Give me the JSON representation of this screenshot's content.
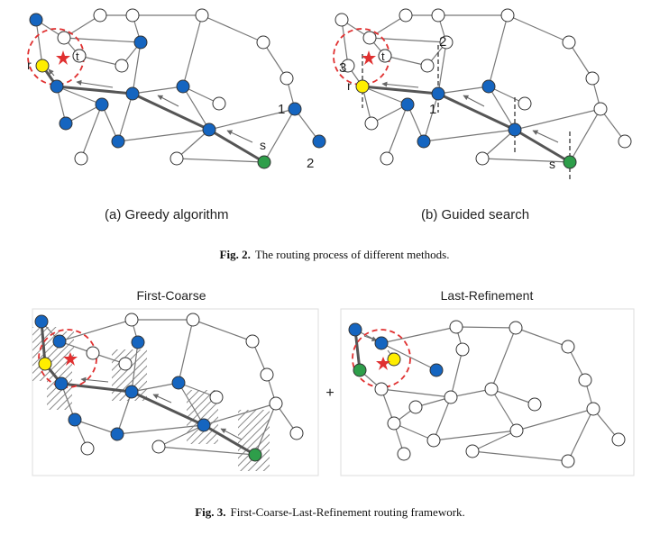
{
  "figure2": {
    "panel_a": {
      "caption": "(a) Greedy algorithm",
      "labels": {
        "r": "r",
        "t": "t",
        "s": "s",
        "n1": "1",
        "n2": "2"
      }
    },
    "panel_b": {
      "caption": "(b) Guided search",
      "labels": {
        "r": "r",
        "t": "t",
        "s": "s",
        "n1": "1",
        "n2": "2",
        "n3": "3"
      }
    },
    "caption_bold": "Fig. 2.",
    "caption_text": "The routing process of different methods."
  },
  "figure3": {
    "panel_left_title": "First-Coarse",
    "panel_right_title": "Last-Refinement",
    "plus": "+",
    "caption_bold": "Fig. 3.",
    "caption_text": "First-Coarse-Last-Refinement routing framework."
  },
  "colors": {
    "visited": "#1565c0",
    "unvisited": "#ffffff",
    "start": "#2e9e4a",
    "result": "#ffee00",
    "target": "#e03030",
    "edge": "#777777",
    "path": "#555555"
  }
}
